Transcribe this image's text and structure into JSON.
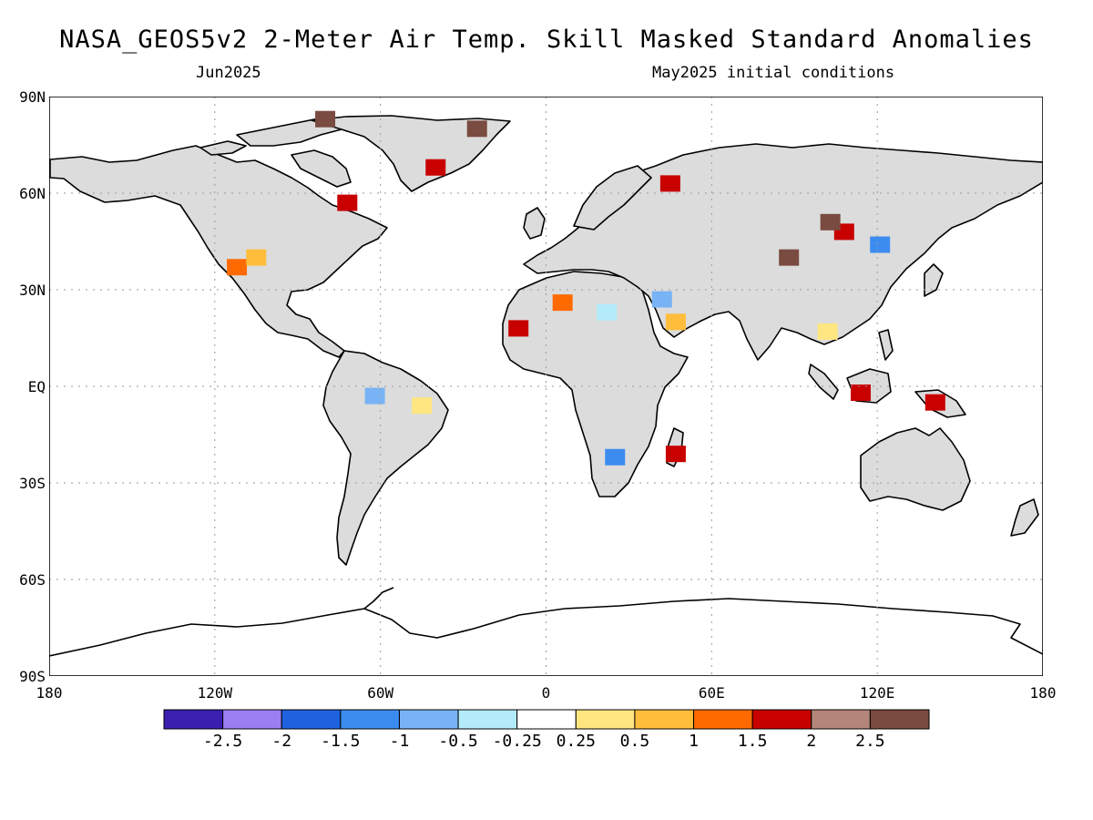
{
  "header": {
    "title": "NASA_GEOS5v2 2-Meter Air Temp. Skill Masked Standard Anomalies",
    "valid_month": "Jun2025",
    "initial_conditions": "May2025 initial conditions"
  },
  "map": {
    "projection": "equirectangular",
    "lon_range": [
      -180,
      180
    ],
    "lat_range": [
      -90,
      90
    ],
    "masked_land_color": "#dcdcdc",
    "ocean_color": "#ffffff",
    "lat_ticks": [
      {
        "lat": 90,
        "label": "90N"
      },
      {
        "lat": 60,
        "label": "60N"
      },
      {
        "lat": 30,
        "label": "30N"
      },
      {
        "lat": 0,
        "label": "EQ"
      },
      {
        "lat": -30,
        "label": "30S"
      },
      {
        "lat": -60,
        "label": "60S"
      },
      {
        "lat": -90,
        "label": "90S"
      }
    ],
    "lon_ticks": [
      {
        "lon": -180,
        "label": "180"
      },
      {
        "lon": -120,
        "label": "120W"
      },
      {
        "lon": -60,
        "label": "60W"
      },
      {
        "lon": 0,
        "label": "0"
      },
      {
        "lon": 60,
        "label": "60E"
      },
      {
        "lon": 120,
        "label": "120E"
      },
      {
        "lon": 180,
        "label": "180"
      }
    ]
  },
  "colorbar": {
    "colors": [
      "#3a1fb0",
      "#9a7ff0",
      "#1f62e0",
      "#3c8cf0",
      "#78b4f5",
      "#b4ebfa",
      "#ffffff",
      "#ffe680",
      "#ffbd3c",
      "#ff6a00",
      "#c80000",
      "#b4867a",
      "#7a4b40"
    ],
    "labels": [
      "-2.5",
      "-2",
      "-1.5",
      "-1",
      "-0.5",
      "-0.25",
      "0.25",
      "0.5",
      "1",
      "1.5",
      "2",
      "2.5"
    ]
  },
  "anomalies": [
    {
      "region": "Southwest US",
      "lon": -112,
      "lat": 37,
      "value": 1.2
    },
    {
      "region": "Southwest US edge",
      "lon": -105,
      "lat": 40,
      "value": 0.7
    },
    {
      "region": "Canadian Arctic",
      "lon": -80,
      "lat": 83,
      "value": 2.7
    },
    {
      "region": "Greenland east",
      "lon": -25,
      "lat": 80,
      "value": 2.7
    },
    {
      "region": "Greenland south",
      "lon": -40,
      "lat": 68,
      "value": 1.7
    },
    {
      "region": "Hudson Bay east",
      "lon": -72,
      "lat": 57,
      "value": 1.7
    },
    {
      "region": "Eastern Russia west",
      "lon": 45,
      "lat": 63,
      "value": 1.7
    },
    {
      "region": "Mongolia",
      "lon": 108,
      "lat": 48,
      "value": 1.7
    },
    {
      "region": "Mongolia north",
      "lon": 103,
      "lat": 51,
      "value": 2.7
    },
    {
      "region": "Tibet",
      "lon": 88,
      "lat": 40,
      "value": 2.7
    },
    {
      "region": "Northeast China",
      "lon": 121,
      "lat": 44,
      "value": -1.2
    },
    {
      "region": "Sahara west",
      "lon": 6,
      "lat": 26,
      "value": 1.2
    },
    {
      "region": "Sahara east",
      "lon": 22,
      "lat": 23,
      "value": -0.4
    },
    {
      "region": "Arabian Peninsula",
      "lon": 42,
      "lat": 27,
      "value": -0.7
    },
    {
      "region": "Arabian Peninsula south",
      "lon": 47,
      "lat": 20,
      "value": 0.7
    },
    {
      "region": "Sahel west",
      "lon": -10,
      "lat": 18,
      "value": 1.7
    },
    {
      "region": "Amazon",
      "lon": -45,
      "lat": -6,
      "value": 0.4
    },
    {
      "region": "Amazon west",
      "lon": -62,
      "lat": -3,
      "value": -0.7
    },
    {
      "region": "Southern Africa",
      "lon": 25,
      "lat": -22,
      "value": -1.2
    },
    {
      "region": "Madagascar",
      "lon": 47,
      "lat": -21,
      "value": 1.7
    },
    {
      "region": "Borneo",
      "lon": 114,
      "lat": -2,
      "value": 1.7
    },
    {
      "region": "New Guinea",
      "lon": 141,
      "lat": -5,
      "value": 1.7
    },
    {
      "region": "Indochina",
      "lon": 102,
      "lat": 17,
      "value": 0.4
    }
  ]
}
